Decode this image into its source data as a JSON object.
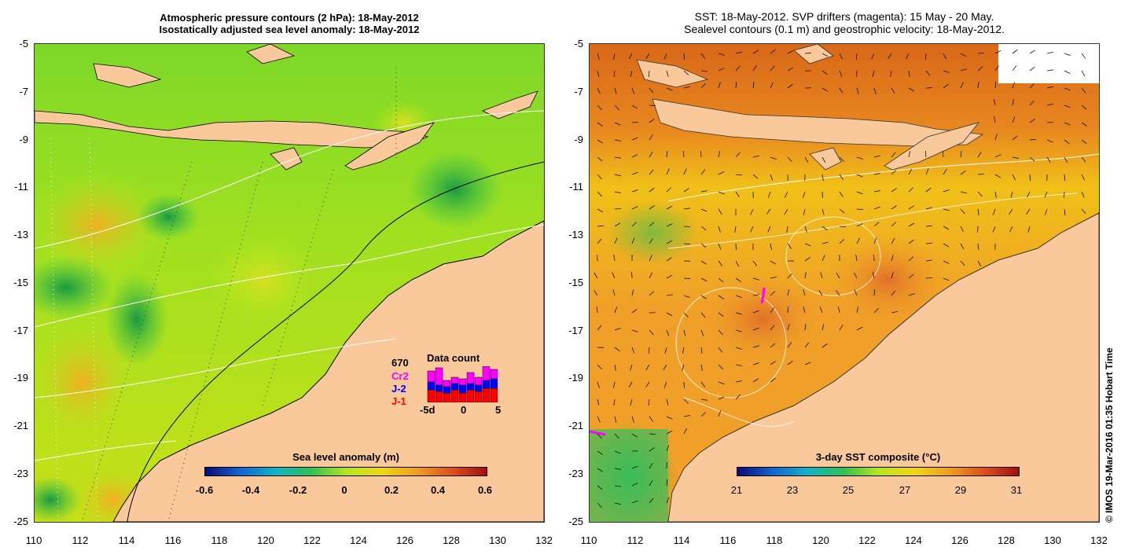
{
  "left_panel": {
    "title_line1": "Atmospheric pressure contours (2 hPa): 18-May-2012",
    "title_line2": "Isostatically adjusted sea level anomaly: 18-May-2012",
    "colorbar": {
      "title": "Sea level anomaly (m)",
      "ticks": [
        "-0.6",
        "-0.4",
        "-0.2",
        "0",
        "0.2",
        "0.4",
        "0.6"
      ],
      "colors": [
        "#0a0a78",
        "#1464d2",
        "#10b4c8",
        "#30c050",
        "#b4e61e",
        "#f0d810",
        "#f0a020",
        "#e0501a",
        "#a01010"
      ]
    },
    "data_count": {
      "title": "Data count",
      "total": "670",
      "missions": [
        {
          "name": "Cr2",
          "color": "#ff00ff"
        },
        {
          "name": "J-2",
          "color": "#0000ff"
        },
        {
          "name": "J-1",
          "color": "#ff0000"
        }
      ],
      "axis_labels": [
        "-5d",
        "0",
        "5"
      ]
    }
  },
  "right_panel": {
    "title_line1": "SST: 18-May-2012. SVP drifters (magenta): 15 May - 20 May.",
    "title_line2": "Sealevel contours (0.1 m) and geostrophic velocity: 18-May-2012.",
    "colorbar": {
      "title": "3-day SST composite (°C)",
      "ticks": [
        "21",
        "23",
        "25",
        "27",
        "29",
        "31"
      ],
      "colors": [
        "#0a0a78",
        "#1464d2",
        "#10b4c8",
        "#30c050",
        "#b4e61e",
        "#f0d810",
        "#f0a020",
        "#e0501a",
        "#a01010"
      ]
    }
  },
  "axes": {
    "lat_labels": [
      "-5",
      "-7",
      "-9",
      "-11",
      "-13",
      "-15",
      "-17",
      "-19",
      "-21",
      "-23",
      "-25"
    ],
    "lon_labels": [
      "110",
      "112",
      "114",
      "116",
      "118",
      "120",
      "122",
      "124",
      "126",
      "128",
      "130",
      "132"
    ]
  },
  "colors": {
    "land": "#f9c89b",
    "sla_ocean": "#7ed828",
    "sst_ocean": "#f0a028"
  },
  "copyright": "© IMOS 19-Mar-2016 01:35 Hobart Time"
}
